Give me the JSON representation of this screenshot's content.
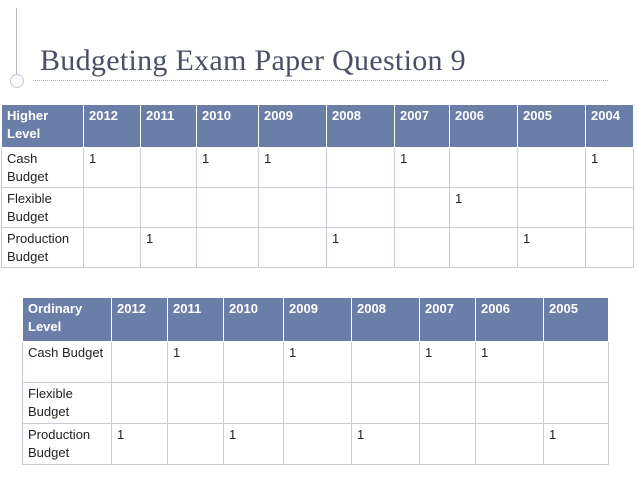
{
  "slide": {
    "title": "Budgeting Exam Paper Question 9"
  },
  "higher_level": {
    "columns": [
      "Higher Level",
      "2012",
      "2011",
      "2010",
      "2009",
      "2008",
      "2007",
      "2006",
      "2005",
      "2004"
    ],
    "rows": [
      [
        "Cash Budget",
        "1",
        "",
        "1",
        "1",
        "",
        "1",
        "",
        "",
        "1"
      ],
      [
        "Flexible Budget",
        "",
        "",
        "",
        "",
        "",
        "",
        "1",
        "",
        ""
      ],
      [
        "Production Budget",
        "",
        "1",
        "",
        "",
        "1",
        "",
        "",
        "1",
        ""
      ]
    ]
  },
  "ordinary_level": {
    "columns": [
      "Ordinary Level",
      "2012",
      "2011",
      "2010",
      "2009",
      "2008",
      "2007",
      "2006",
      "2005"
    ],
    "rows": [
      [
        "Cash Budget",
        "",
        "1",
        "",
        "1",
        "",
        "1",
        "1",
        ""
      ],
      [
        "Flexible Budget",
        "",
        "",
        "",
        "",
        "",
        "",
        "",
        ""
      ],
      [
        "Production Budget",
        "1",
        "",
        "1",
        "",
        "1",
        "",
        "",
        "1"
      ]
    ]
  }
}
